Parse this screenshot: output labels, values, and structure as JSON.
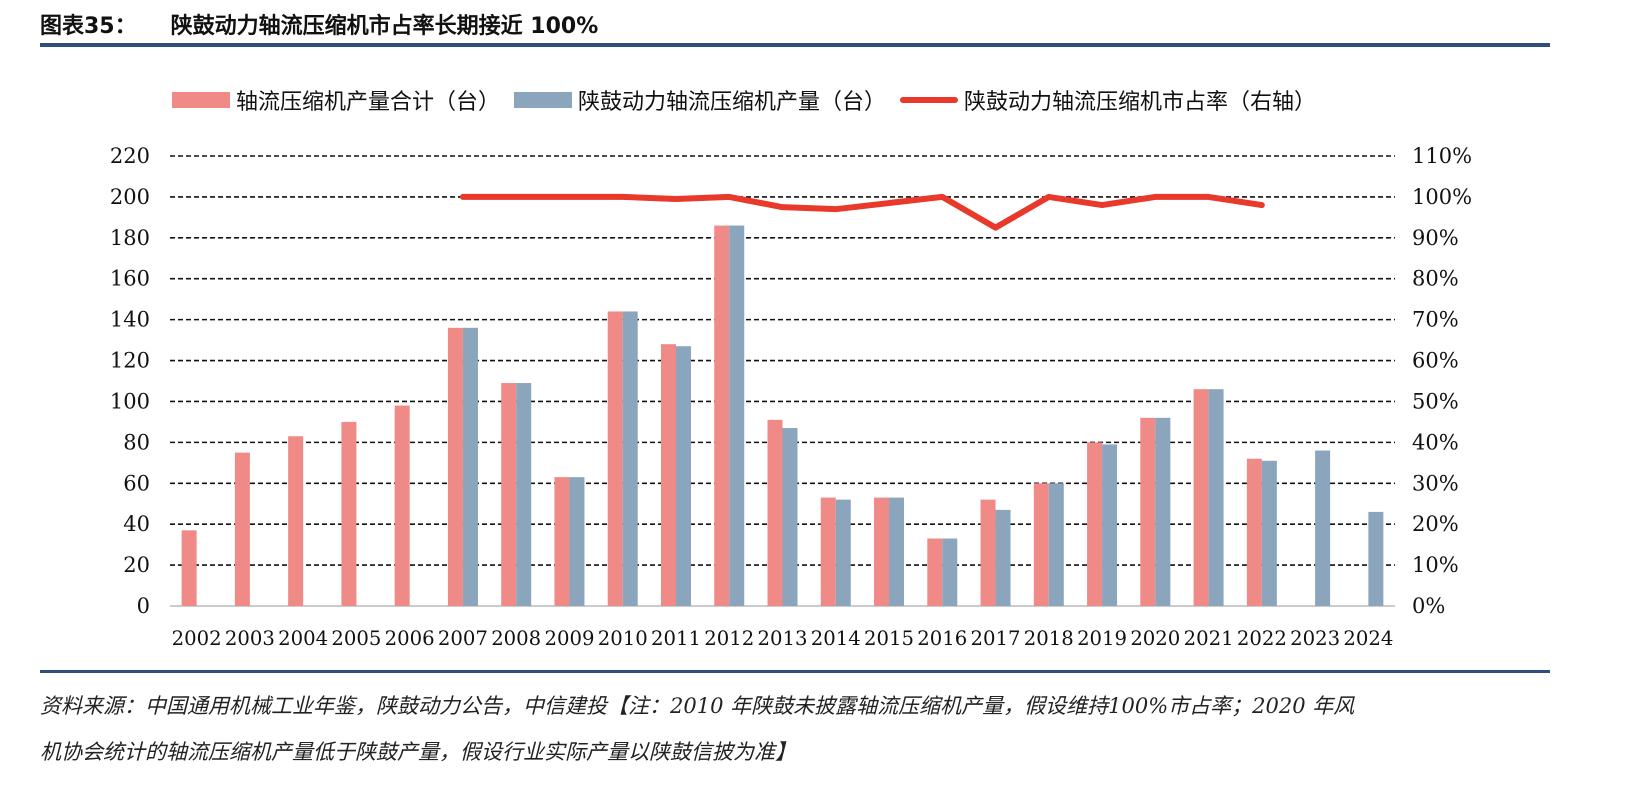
{
  "title": {
    "number": "图表35：",
    "text": "陕鼓动力轴流压缩机市占率长期接近 100%"
  },
  "chart_data": {
    "type": "bar",
    "title": "陕鼓动力轴流压缩机市占率长期接近 100%",
    "categories": [
      "2002",
      "2003",
      "2004",
      "2005",
      "2006",
      "2007",
      "2008",
      "2009",
      "2010",
      "2011",
      "2012",
      "2013",
      "2014",
      "2015",
      "2016",
      "2017",
      "2018",
      "2019",
      "2020",
      "2021",
      "2022",
      "2023",
      "2024"
    ],
    "series": [
      {
        "name": "轴流压缩机产量合计（台）",
        "type": "bar",
        "axis": "left",
        "color": "#F08A87",
        "values": [
          37,
          75,
          83,
          90,
          98,
          136,
          109,
          63,
          144,
          128,
          186,
          91,
          53,
          53,
          33,
          52,
          60,
          80,
          92,
          106,
          72,
          null,
          null
        ]
      },
      {
        "name": "陕鼓动力轴流压缩机产量（台）",
        "type": "bar",
        "axis": "left",
        "color": "#8AA5BC",
        "values": [
          null,
          null,
          null,
          null,
          null,
          136,
          109,
          63,
          144,
          127,
          186,
          87,
          52,
          53,
          33,
          47,
          60,
          79,
          92,
          106,
          71,
          76,
          46
        ]
      },
      {
        "name": "陕鼓动力轴流压缩机市占率（右轴）",
        "type": "line",
        "axis": "right",
        "color": "#E8392B",
        "values": [
          null,
          null,
          null,
          null,
          null,
          100,
          100,
          100,
          100,
          99.5,
          100,
          97.5,
          97,
          98.5,
          100,
          92.5,
          100,
          98,
          100,
          100,
          98,
          null,
          null
        ]
      }
    ],
    "left_axis": {
      "ylim": [
        0,
        220
      ],
      "ticks": [
        "0",
        "20",
        "40",
        "60",
        "80",
        "100",
        "120",
        "140",
        "160",
        "180",
        "200",
        "220"
      ]
    },
    "right_axis": {
      "ylim": [
        0,
        110
      ],
      "ticks": [
        "0%",
        "10%",
        "20%",
        "30%",
        "40%",
        "50%",
        "60%",
        "70%",
        "80%",
        "90%",
        "100%",
        "110%"
      ]
    },
    "grid": "dashed horizontal",
    "legend": "top"
  },
  "source": {
    "line1": "资料来源：中国通用机械工业年鉴，陕鼓动力公告，中信建投【注：2010 年陕鼓未披露轴流压缩机产量，假设维持100%市占率；2020 年风",
    "line2": "机协会统计的轴流压缩机产量低于陕鼓产量，假设行业实际产量以陕鼓信披为准】"
  }
}
